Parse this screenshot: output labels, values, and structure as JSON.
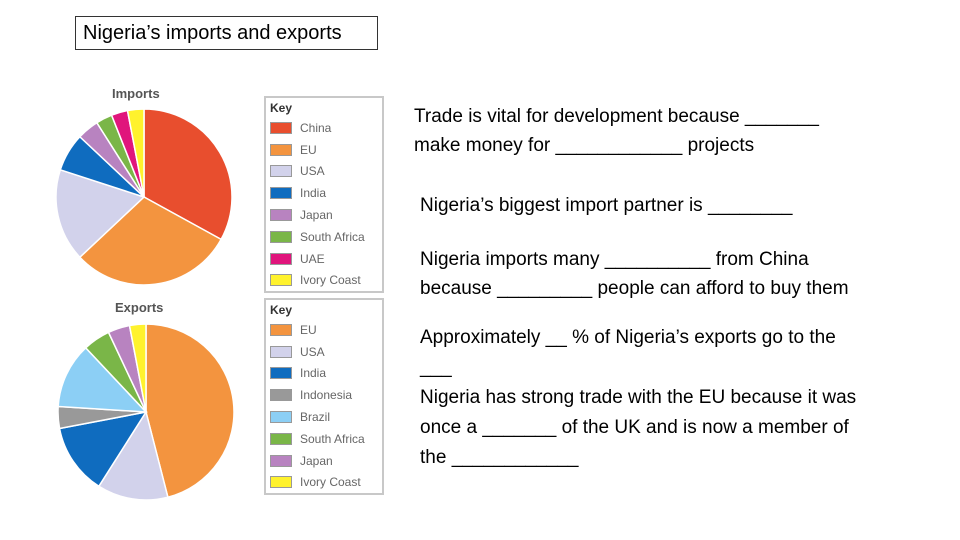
{
  "title": "Nigeria’s imports and exports",
  "text_blocks": [
    {
      "lines": [
        "Trade is vital for development because _______",
        "make money for ____________ projects"
      ]
    },
    {
      "lines": [
        "Nigeria’s biggest import partner is ________"
      ]
    },
    {
      "lines": [
        "Nigeria imports many __________ from China",
        "because _________ people can afford to buy them"
      ]
    },
    {
      "lines": [
        "Approximately __ % of Nigeria’s exports go to the",
        "___",
        "Nigeria has strong trade with the EU because it was",
        "once a _______ of the UK and is now a member of",
        "the ____________"
      ]
    }
  ],
  "chart_data": [
    {
      "type": "pie",
      "title": "Imports",
      "key_title": "Key",
      "slices": [
        {
          "label": "China",
          "value": 33,
          "color": "#e84e2e"
        },
        {
          "label": "EU",
          "value": 30,
          "color": "#f3943f"
        },
        {
          "label": "USA",
          "value": 17,
          "color": "#d2d2eb"
        },
        {
          "label": "India",
          "value": 7,
          "color": "#0f6cbf"
        },
        {
          "label": "Japan",
          "value": 4,
          "color": "#b883c0"
        },
        {
          "label": "South Africa",
          "value": 3,
          "color": "#7ab648"
        },
        {
          "label": "UAE",
          "value": 3,
          "color": "#e0157c"
        },
        {
          "label": "Ivory Coast",
          "value": 3,
          "color": "#fff22d"
        }
      ]
    },
    {
      "type": "pie",
      "title": "Exports",
      "key_title": "Key",
      "slices": [
        {
          "label": "EU",
          "value": 46,
          "color": "#f3943f"
        },
        {
          "label": "USA",
          "value": 13,
          "color": "#d2d2eb"
        },
        {
          "label": "India",
          "value": 13,
          "color": "#0f6cbf"
        },
        {
          "label": "Indonesia",
          "value": 4,
          "color": "#999999"
        },
        {
          "label": "Brazil",
          "value": 12,
          "color": "#8ccff5"
        },
        {
          "label": "South Africa",
          "value": 5,
          "color": "#7ab648"
        },
        {
          "label": "Japan",
          "value": 4,
          "color": "#b883c0"
        },
        {
          "label": "Ivory Coast",
          "value": 3,
          "color": "#fff22d"
        }
      ]
    }
  ]
}
